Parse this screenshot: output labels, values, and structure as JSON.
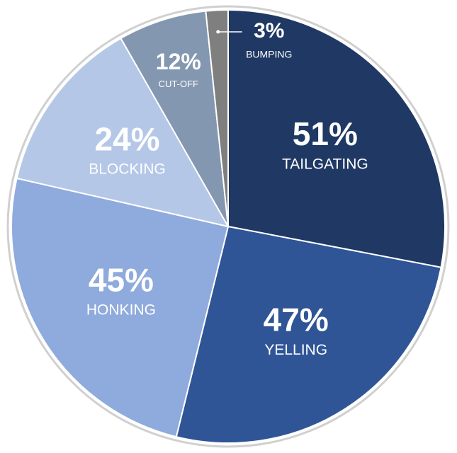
{
  "chart_data": {
    "type": "pie",
    "categories": [
      "TAILGATING",
      "YELLING",
      "HONKING",
      "BLOCKING",
      "CUT-OFF",
      "BUMPING"
    ],
    "values": [
      51,
      47,
      45,
      24,
      12,
      3
    ],
    "value_labels": [
      "51%",
      "47%",
      "45%",
      "24%",
      "12%",
      "3%"
    ],
    "colors": [
      "#1f3864",
      "#2f5597",
      "#8faadc",
      "#b4c7e7",
      "#8497b0",
      "#7f7f7f"
    ]
  }
}
